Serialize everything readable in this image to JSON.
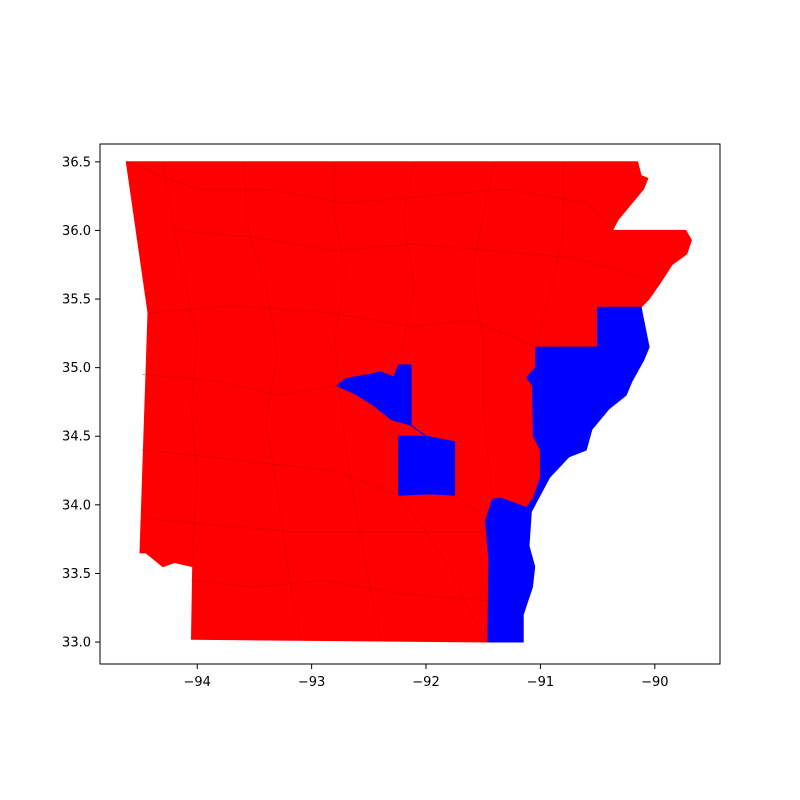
{
  "chart_data": {
    "type": "map",
    "title": "",
    "xlabel": "",
    "ylabel": "",
    "xlim": [
      -94.85,
      -89.43
    ],
    "ylim": [
      32.84,
      36.63
    ],
    "xticks": [
      -94,
      -93,
      -92,
      -91,
      -90
    ],
    "yticks": [
      33.0,
      33.5,
      34.0,
      34.5,
      35.0,
      35.5,
      36.0,
      36.5
    ],
    "xtick_labels": [
      "−94",
      "−93",
      "−92",
      "−91",
      "−90"
    ],
    "ytick_labels": [
      "33.0",
      "33.5",
      "34.0",
      "34.5",
      "35.0",
      "35.5",
      "36.0",
      "36.5"
    ],
    "grid": false,
    "legend": "none",
    "colors": {
      "majority": "#ff0000",
      "minority": "#0000ff"
    },
    "regions": [
      {
        "color": "majority",
        "coords": [
          [
            -94.62,
            36.5
          ],
          [
            -90.15,
            36.5
          ],
          [
            -90.12,
            36.4
          ],
          [
            -90.06,
            36.38
          ],
          [
            -90.1,
            36.3
          ],
          [
            -90.2,
            36.2
          ],
          [
            -90.32,
            36.08
          ],
          [
            -90.37,
            36.0
          ],
          [
            -89.73,
            36.0
          ],
          [
            -89.68,
            35.93
          ],
          [
            -89.72,
            35.83
          ],
          [
            -89.85,
            35.75
          ],
          [
            -89.95,
            35.62
          ],
          [
            -90.05,
            35.5
          ],
          [
            -90.12,
            35.44
          ],
          [
            -90.5,
            35.44
          ],
          [
            -90.5,
            35.15
          ],
          [
            -91.04,
            35.15
          ],
          [
            -91.04,
            35.0
          ],
          [
            -91.12,
            34.93
          ],
          [
            -91.07,
            34.87
          ],
          [
            -91.06,
            34.5
          ],
          [
            -91.0,
            34.4
          ],
          [
            -91.0,
            34.2
          ],
          [
            -91.06,
            34.05
          ],
          [
            -91.12,
            33.98
          ],
          [
            -91.35,
            34.05
          ],
          [
            -91.42,
            34.04
          ],
          [
            -91.48,
            33.88
          ],
          [
            -91.45,
            33.6
          ],
          [
            -91.46,
            33.0
          ],
          [
            -94.05,
            33.02
          ],
          [
            -94.04,
            33.55
          ],
          [
            -94.2,
            33.58
          ],
          [
            -94.3,
            33.55
          ],
          [
            -94.45,
            33.65
          ],
          [
            -94.5,
            33.65
          ],
          [
            -94.43,
            35.4
          ],
          [
            -94.62,
            36.5
          ]
        ]
      },
      {
        "color": "minority",
        "coords": [
          [
            -90.5,
            35.44
          ],
          [
            -90.12,
            35.44
          ],
          [
            -90.05,
            35.15
          ],
          [
            -90.1,
            35.05
          ],
          [
            -90.2,
            34.9
          ],
          [
            -90.25,
            34.8
          ],
          [
            -90.4,
            34.7
          ],
          [
            -90.55,
            34.55
          ],
          [
            -90.6,
            34.4
          ],
          [
            -90.75,
            34.35
          ],
          [
            -90.92,
            34.2
          ],
          [
            -91.08,
            33.95
          ],
          [
            -91.1,
            33.7
          ],
          [
            -91.05,
            33.55
          ],
          [
            -91.07,
            33.4
          ],
          [
            -91.15,
            33.2
          ],
          [
            -91.15,
            33.0
          ],
          [
            -91.46,
            33.0
          ],
          [
            -91.45,
            33.6
          ],
          [
            -91.48,
            33.88
          ],
          [
            -91.42,
            34.04
          ],
          [
            -91.35,
            34.05
          ],
          [
            -91.12,
            33.98
          ],
          [
            -91.06,
            34.05
          ],
          [
            -91.0,
            34.2
          ],
          [
            -91.0,
            34.4
          ],
          [
            -91.06,
            34.5
          ],
          [
            -91.07,
            34.87
          ],
          [
            -91.12,
            34.93
          ],
          [
            -91.04,
            35.0
          ],
          [
            -91.04,
            35.15
          ],
          [
            -90.5,
            35.15
          ],
          [
            -90.5,
            35.44
          ]
        ]
      },
      {
        "color": "minority",
        "coords": [
          [
            -92.13,
            35.02
          ],
          [
            -92.13,
            34.58
          ],
          [
            -92.0,
            34.5
          ],
          [
            -92.24,
            34.5
          ],
          [
            -92.24,
            34.07
          ],
          [
            -91.95,
            34.08
          ],
          [
            -91.75,
            34.07
          ],
          [
            -91.75,
            34.46
          ],
          [
            -92.0,
            34.5
          ],
          [
            -92.13,
            34.58
          ],
          [
            -92.3,
            34.62
          ],
          [
            -92.45,
            34.72
          ],
          [
            -92.6,
            34.8
          ],
          [
            -92.78,
            34.87
          ],
          [
            -92.7,
            34.92
          ],
          [
            -92.5,
            34.95
          ],
          [
            -92.4,
            34.97
          ],
          [
            -92.28,
            34.93
          ],
          [
            -92.24,
            35.02
          ],
          [
            -92.13,
            35.02
          ]
        ]
      }
    ],
    "county_lines": [
      [
        [
          -94.43,
          35.4
        ],
        [
          -93.7,
          35.45
        ],
        [
          -92.85,
          35.4
        ],
        [
          -92.1,
          35.3
        ],
        [
          -91.6,
          35.35
        ],
        [
          -91.04,
          35.15
        ]
      ],
      [
        [
          -94.48,
          34.95
        ],
        [
          -93.8,
          34.9
        ],
        [
          -93.3,
          34.8
        ],
        [
          -92.78,
          34.87
        ]
      ],
      [
        [
          -94.48,
          34.4
        ],
        [
          -93.9,
          34.35
        ],
        [
          -93.4,
          34.3
        ],
        [
          -92.8,
          34.25
        ],
        [
          -92.24,
          34.07
        ]
      ],
      [
        [
          -94.45,
          33.9
        ],
        [
          -93.8,
          33.85
        ],
        [
          -93.1,
          33.8
        ],
        [
          -92.4,
          33.8
        ],
        [
          -91.45,
          33.8
        ]
      ],
      [
        [
          -94.05,
          33.45
        ],
        [
          -93.5,
          33.4
        ],
        [
          -92.9,
          33.45
        ],
        [
          -92.2,
          33.35
        ],
        [
          -91.46,
          33.3
        ]
      ],
      [
        [
          -94.3,
          36.5
        ],
        [
          -94.2,
          36.0
        ],
        [
          -94.1,
          35.6
        ],
        [
          -94.0,
          35.2
        ],
        [
          -94.05,
          34.7
        ],
        [
          -94.0,
          34.2
        ],
        [
          -94.05,
          33.55
        ]
      ],
      [
        [
          -93.6,
          36.5
        ],
        [
          -93.55,
          36.0
        ],
        [
          -93.4,
          35.6
        ],
        [
          -93.3,
          35.1
        ],
        [
          -93.4,
          34.6
        ],
        [
          -93.3,
          34.1
        ],
        [
          -93.2,
          33.5
        ],
        [
          -93.1,
          33.02
        ]
      ],
      [
        [
          -92.8,
          36.5
        ],
        [
          -92.8,
          36.1
        ],
        [
          -92.7,
          35.7
        ],
        [
          -92.8,
          35.2
        ],
        [
          -92.7,
          34.4
        ],
        [
          -92.6,
          33.9
        ],
        [
          -92.4,
          33.02
        ]
      ],
      [
        [
          -92.1,
          36.5
        ],
        [
          -92.2,
          36.1
        ],
        [
          -92.1,
          35.6
        ],
        [
          -92.24,
          35.02
        ]
      ],
      [
        [
          -91.4,
          36.5
        ],
        [
          -91.5,
          36.1
        ],
        [
          -91.6,
          35.7
        ],
        [
          -91.5,
          35.2
        ],
        [
          -91.5,
          34.7
        ],
        [
          -91.45,
          34.3
        ],
        [
          -91.42,
          34.04
        ]
      ],
      [
        [
          -90.8,
          36.5
        ],
        [
          -90.8,
          36.0
        ],
        [
          -90.9,
          35.6
        ],
        [
          -91.04,
          35.15
        ]
      ],
      [
        [
          -94.62,
          36.5
        ],
        [
          -94.0,
          36.3
        ],
        [
          -93.4,
          36.3
        ],
        [
          -92.7,
          36.2
        ],
        [
          -92.0,
          36.25
        ],
        [
          -91.3,
          36.3
        ],
        [
          -90.6,
          36.2
        ],
        [
          -90.37,
          36.0
        ]
      ],
      [
        [
          -94.2,
          36.0
        ],
        [
          -93.5,
          35.95
        ],
        [
          -92.8,
          35.85
        ],
        [
          -92.1,
          35.9
        ],
        [
          -91.4,
          35.85
        ],
        [
          -90.7,
          35.8
        ],
        [
          -89.95,
          35.62
        ]
      ],
      [
        [
          -92.24,
          34.07
        ],
        [
          -92.0,
          33.8
        ],
        [
          -91.8,
          33.55
        ],
        [
          -91.6,
          33.2
        ],
        [
          -91.46,
          33.0
        ]
      ],
      [
        [
          -91.75,
          34.07
        ],
        [
          -91.6,
          33.98
        ],
        [
          -91.45,
          33.9
        ]
      ]
    ]
  }
}
